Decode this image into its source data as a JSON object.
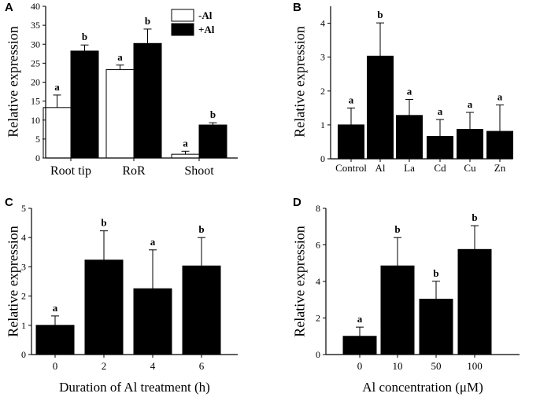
{
  "chart_data": [
    {
      "panel": "A",
      "type": "bar",
      "ylabel": "Relative expression",
      "xlabel": "",
      "ylim": [
        0,
        40
      ],
      "yticks": [
        0,
        5,
        10,
        15,
        20,
        25,
        30,
        35,
        40
      ],
      "categories": [
        "Root tip",
        "RoR",
        "Shoot"
      ],
      "series": [
        {
          "name": "-Al",
          "fill": "#ffffff",
          "values": [
            13.3,
            23.3,
            1.0
          ],
          "errors": [
            3.3,
            1.2,
            0.8
          ],
          "labels": [
            "a",
            "a",
            "a"
          ]
        },
        {
          "name": "+Al",
          "fill": "#000000",
          "values": [
            28.2,
            30.2,
            8.7
          ],
          "errors": [
            1.6,
            3.8,
            0.6
          ],
          "labels": [
            "b",
            "b",
            "b"
          ]
        }
      ]
    },
    {
      "panel": "B",
      "type": "bar",
      "ylabel": "Relative expression",
      "xlabel": "",
      "ylim": [
        0,
        4.5
      ],
      "yticks": [
        0,
        1,
        2,
        3,
        4
      ],
      "categories": [
        "Control",
        "Al",
        "La",
        "Cd",
        "Cu",
        "Zn"
      ],
      "series": [
        {
          "name": "",
          "fill": "#000000",
          "values": [
            1.0,
            3.03,
            1.28,
            0.66,
            0.87,
            0.81
          ],
          "errors": [
            0.5,
            0.98,
            0.47,
            0.5,
            0.5,
            0.78
          ],
          "labels": [
            "a",
            "b",
            "a",
            "a",
            "a",
            "a"
          ]
        }
      ]
    },
    {
      "panel": "C",
      "type": "bar",
      "ylabel": "Relative expression",
      "xlabel": "Duration of Al treatment (h)",
      "ylim": [
        0,
        5
      ],
      "yticks": [
        0,
        1,
        2,
        3,
        4,
        5
      ],
      "categories": [
        "0",
        "2",
        "4",
        "6"
      ],
      "series": [
        {
          "name": "",
          "fill": "#000000",
          "values": [
            1.0,
            3.23,
            2.25,
            3.03
          ],
          "errors": [
            0.32,
            1.0,
            1.33,
            0.97
          ],
          "labels": [
            "a",
            "b",
            "a",
            "b"
          ]
        }
      ]
    },
    {
      "panel": "D",
      "type": "bar",
      "ylabel": "Relative expression",
      "xlabel": "Al concentration (μM)",
      "ylim": [
        0,
        8
      ],
      "yticks": [
        0,
        2,
        4,
        6,
        8
      ],
      "categories": [
        "0",
        "10",
        "50",
        "100"
      ],
      "series": [
        {
          "name": "",
          "fill": "#000000",
          "values": [
            1.0,
            4.85,
            3.03,
            5.75
          ],
          "errors": [
            0.5,
            1.55,
            0.98,
            1.3
          ],
          "labels": [
            "a",
            "b",
            "b",
            "b"
          ]
        }
      ]
    }
  ]
}
